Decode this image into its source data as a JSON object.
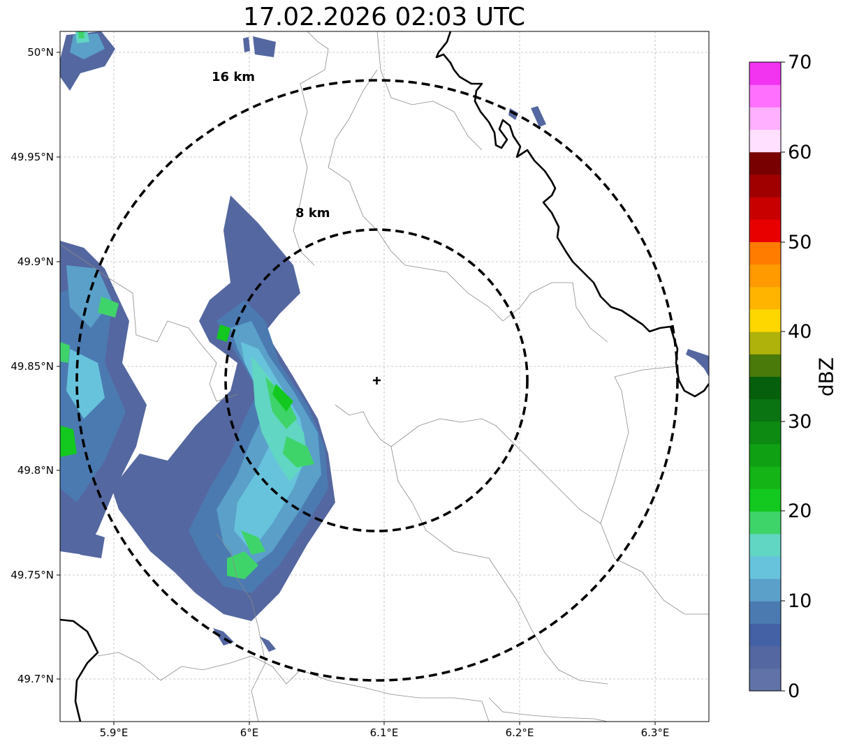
{
  "title": "17.02.2026 02:03 UTC",
  "map": {
    "lat_ticks": [
      "50°N",
      "49.95°N",
      "49.9°N",
      "49.85°N",
      "49.8°N",
      "49.75°N",
      "49.7°N"
    ],
    "lon_ticks": [
      "5.9°E",
      "6°E",
      "6.1°E",
      "6.2°E",
      "6.3°E"
    ],
    "range_rings": [
      {
        "label": "16 km",
        "radius_km": 16
      },
      {
        "label": "8 km",
        "radius_km": 8
      }
    ],
    "radar_site_marker": "plus-icon"
  },
  "colorbar": {
    "unit": "dBZ",
    "tick_labels": [
      "0",
      "10",
      "20",
      "30",
      "40",
      "50",
      "60",
      "70"
    ],
    "colors": [
      "#6172a8",
      "#5467a0",
      "#4461a6",
      "#4b7ab1",
      "#5aa0c9",
      "#67c3dc",
      "#61d6c2",
      "#3fd46a",
      "#13c81f",
      "#14b416",
      "#10a014",
      "#0d8a12",
      "#0a7412",
      "#065f0c",
      "#4a7a0a",
      "#afb20a",
      "#ffd700",
      "#ffb400",
      "#ff9a00",
      "#ff7c00",
      "#e80000",
      "#c80000",
      "#a00000",
      "#780000",
      "#ffe0ff",
      "#ffb0ff",
      "#ff70ff",
      "#f233f0"
    ]
  }
}
